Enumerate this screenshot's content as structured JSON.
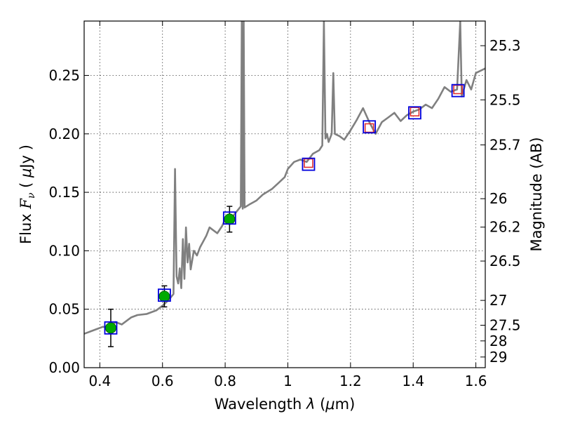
{
  "chart_data": {
    "type": "line",
    "xlabel_prefix": "Wavelength  ",
    "xlabel_lambda": "λ",
    "xlabel_suffix": " (",
    "xlabel_mu": "μ",
    "xlabel_unit": "m)",
    "ylabel_prefix": "Flux  ",
    "ylabel_symbol": "F",
    "ylabel_sub": "ν",
    "ylabel_open": "  (  ",
    "ylabel_mu": "μ",
    "ylabel_unit": "Jy  )",
    "right_ylabel": "Magnitude (AB)",
    "xlim": [
      0.35,
      1.63
    ],
    "ylim": [
      0.0,
      0.2965
    ],
    "grid": true,
    "x_ticks": [
      {
        "value": 0.4,
        "label": "0.4"
      },
      {
        "value": 0.6,
        "label": "0.6"
      },
      {
        "value": 0.8,
        "label": "0.8"
      },
      {
        "value": 1.0,
        "label": "1"
      },
      {
        "value": 1.2,
        "label": "1.2"
      },
      {
        "value": 1.4,
        "label": "1.4"
      },
      {
        "value": 1.6,
        "label": "1.6"
      }
    ],
    "y_ticks": [
      {
        "value": 0.0,
        "label": "0.00"
      },
      {
        "value": 0.05,
        "label": "0.05"
      },
      {
        "value": 0.1,
        "label": "0.10"
      },
      {
        "value": 0.15,
        "label": "0.15"
      },
      {
        "value": 0.2,
        "label": "0.20"
      },
      {
        "value": 0.25,
        "label": "0.25"
      }
    ],
    "right_ticks": [
      {
        "mag": 25.3,
        "label": "25.3"
      },
      {
        "mag": 25.5,
        "label": "25.5"
      },
      {
        "mag": 25.7,
        "label": "25.7"
      },
      {
        "mag": 26.0,
        "label": "26"
      },
      {
        "mag": 26.2,
        "label": "26.2"
      },
      {
        "mag": 26.5,
        "label": "26.5"
      },
      {
        "mag": 27.0,
        "label": "27"
      },
      {
        "mag": 27.5,
        "label": "27.5"
      },
      {
        "mag": 28.0,
        "label": "28"
      },
      {
        "mag": 29.0,
        "label": "29"
      }
    ],
    "series": [
      {
        "name": "model spectrum",
        "color": "#808080",
        "points": [
          [
            0.35,
            0.029
          ],
          [
            0.37,
            0.031
          ],
          [
            0.39,
            0.033
          ],
          [
            0.41,
            0.035
          ],
          [
            0.43,
            0.034
          ],
          [
            0.45,
            0.039
          ],
          [
            0.47,
            0.037
          ],
          [
            0.49,
            0.041
          ],
          [
            0.5,
            0.043
          ],
          [
            0.52,
            0.045
          ],
          [
            0.55,
            0.046
          ],
          [
            0.58,
            0.049
          ],
          [
            0.6,
            0.053
          ],
          [
            0.62,
            0.058
          ],
          [
            0.635,
            0.063
          ],
          [
            0.64,
            0.17
          ],
          [
            0.645,
            0.078
          ],
          [
            0.65,
            0.072
          ],
          [
            0.655,
            0.085
          ],
          [
            0.66,
            0.068
          ],
          [
            0.665,
            0.11
          ],
          [
            0.67,
            0.076
          ],
          [
            0.675,
            0.12
          ],
          [
            0.68,
            0.09
          ],
          [
            0.685,
            0.106
          ],
          [
            0.69,
            0.084
          ],
          [
            0.7,
            0.1
          ],
          [
            0.71,
            0.096
          ],
          [
            0.72,
            0.103
          ],
          [
            0.73,
            0.108
          ],
          [
            0.74,
            0.113
          ],
          [
            0.75,
            0.12
          ],
          [
            0.76,
            0.118
          ],
          [
            0.775,
            0.115
          ],
          [
            0.79,
            0.121
          ],
          [
            0.8,
            0.127
          ],
          [
            0.81,
            0.13
          ],
          [
            0.82,
            0.128
          ],
          [
            0.835,
            0.133
          ],
          [
            0.85,
            0.138
          ],
          [
            0.853,
            0.296
          ],
          [
            0.856,
            0.136
          ],
          [
            0.859,
            0.296
          ],
          [
            0.862,
            0.137
          ],
          [
            0.88,
            0.14
          ],
          [
            0.9,
            0.143
          ],
          [
            0.92,
            0.148
          ],
          [
            0.95,
            0.153
          ],
          [
            0.97,
            0.158
          ],
          [
            0.99,
            0.163
          ],
          [
            1.0,
            0.17
          ],
          [
            1.02,
            0.176
          ],
          [
            1.04,
            0.178
          ],
          [
            1.06,
            0.176
          ],
          [
            1.08,
            0.183
          ],
          [
            1.1,
            0.186
          ],
          [
            1.11,
            0.19
          ],
          [
            1.115,
            0.296
          ],
          [
            1.12,
            0.196
          ],
          [
            1.125,
            0.2
          ],
          [
            1.13,
            0.193
          ],
          [
            1.14,
            0.2
          ],
          [
            1.145,
            0.252
          ],
          [
            1.15,
            0.2
          ],
          [
            1.165,
            0.198
          ],
          [
            1.18,
            0.195
          ],
          [
            1.2,
            0.203
          ],
          [
            1.22,
            0.212
          ],
          [
            1.24,
            0.222
          ],
          [
            1.26,
            0.21
          ],
          [
            1.28,
            0.2
          ],
          [
            1.3,
            0.21
          ],
          [
            1.32,
            0.214
          ],
          [
            1.34,
            0.218
          ],
          [
            1.36,
            0.211
          ],
          [
            1.38,
            0.216
          ],
          [
            1.4,
            0.219
          ],
          [
            1.42,
            0.221
          ],
          [
            1.44,
            0.225
          ],
          [
            1.46,
            0.222
          ],
          [
            1.48,
            0.23
          ],
          [
            1.5,
            0.24
          ],
          [
            1.52,
            0.236
          ],
          [
            1.54,
            0.238
          ],
          [
            1.55,
            0.296
          ],
          [
            1.555,
            0.232
          ],
          [
            1.57,
            0.246
          ],
          [
            1.585,
            0.238
          ],
          [
            1.6,
            0.252
          ],
          [
            1.63,
            0.256
          ]
        ]
      },
      {
        "name": "photometry (green)",
        "color": "#00aa00",
        "points": [
          {
            "x": 0.435,
            "y": 0.034,
            "yerr": 0.016
          },
          {
            "x": 0.606,
            "y": 0.061,
            "yerr": 0.009
          },
          {
            "x": 0.814,
            "y": 0.127,
            "yerr": 0.011
          }
        ]
      },
      {
        "name": "photometry (red open)",
        "color": "#e03030",
        "points": [
          {
            "x": 1.066,
            "y": 0.175
          },
          {
            "x": 1.26,
            "y": 0.205
          },
          {
            "x": 1.405,
            "y": 0.219
          },
          {
            "x": 1.543,
            "y": 0.238
          }
        ]
      },
      {
        "name": "synthetic photometry (blue squares)",
        "color": "#0000dd",
        "points": [
          {
            "x": 0.435,
            "y": 0.034
          },
          {
            "x": 0.606,
            "y": 0.062
          },
          {
            "x": 0.814,
            "y": 0.128
          },
          {
            "x": 1.066,
            "y": 0.174
          },
          {
            "x": 1.26,
            "y": 0.206
          },
          {
            "x": 1.405,
            "y": 0.218
          },
          {
            "x": 1.543,
            "y": 0.237
          }
        ]
      }
    ]
  }
}
